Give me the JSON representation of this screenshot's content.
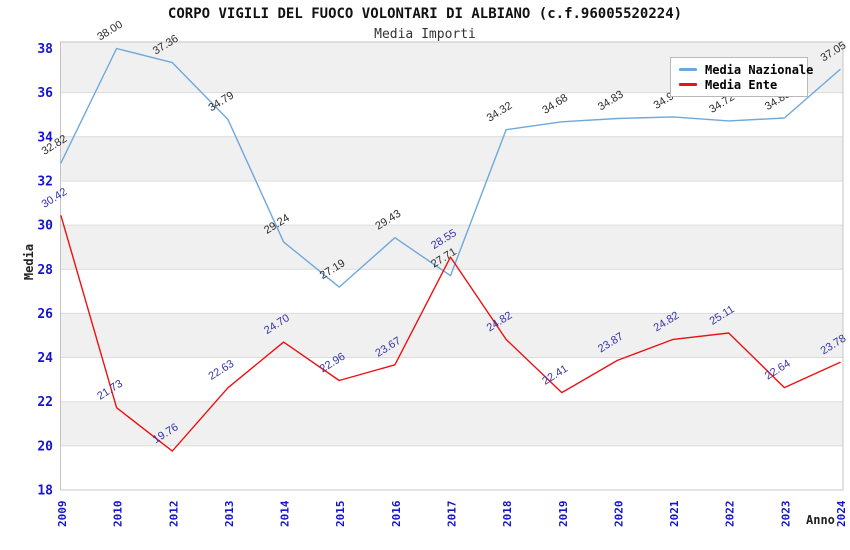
{
  "header": {
    "title": "CORPO VIGILI DEL FUOCO VOLONTARI DI ALBIANO (c.f.96005520224)",
    "subtitle": "Media Importi"
  },
  "axes": {
    "y_label": "Media",
    "x_label": "Anno",
    "y_ticks": [
      "38",
      "36",
      "34",
      "32",
      "30",
      "28",
      "26",
      "24",
      "22",
      "20",
      "18"
    ],
    "x_ticks": [
      "2009",
      "2010",
      "2012",
      "2013",
      "2014",
      "2015",
      "2016",
      "2017",
      "2018",
      "2019",
      "2020",
      "2021",
      "2022",
      "2023",
      "2024"
    ]
  },
  "legend": {
    "position": "top-right",
    "items": [
      {
        "label": "Media Nazionale",
        "color": "#6FA8DC"
      },
      {
        "label": "Media Ente",
        "color": "#EE1111"
      }
    ]
  },
  "colors": {
    "tick_labels": "#1414CC",
    "band_gray": "#F0F0F0",
    "gridline": "#DCDCDC",
    "plot_border": "#C4C4C4",
    "nazionale_line": "#6FA8DC",
    "ente_line": "#EE1111",
    "nazionale_point_labels": "#2B2B2B",
    "ente_point_labels": "#3333AA"
  },
  "chart_data": {
    "type": "line",
    "title": "CORPO VIGILI DEL FUOCO VOLONTARI DI ALBIANO (c.f.96005520224)",
    "subtitle": "Media Importi",
    "xlabel": "Anno",
    "ylabel": "Media",
    "x": [
      "2009",
      "2010",
      "2012",
      "2013",
      "2014",
      "2015",
      "2016",
      "2017",
      "2018",
      "2019",
      "2020",
      "2021",
      "2022",
      "2023",
      "2024"
    ],
    "ylim": [
      18,
      38.3
    ],
    "yticks": [
      18,
      20,
      22,
      24,
      26,
      28,
      30,
      32,
      34,
      36,
      38
    ],
    "grid": "horizontal-bands-alternating",
    "legend_position": "top-right",
    "series": [
      {
        "name": "Media Nazionale",
        "color": "#6FA8DC",
        "label_color": "#2B2B2B",
        "values": [
          32.82,
          38.0,
          37.36,
          34.79,
          29.24,
          27.19,
          29.43,
          27.71,
          34.32,
          34.68,
          34.83,
          34.9,
          34.72,
          34.85,
          37.05
        ],
        "labels": [
          "32.82",
          "38.00",
          "37.36",
          "34.79",
          "29.24",
          "27.19",
          "29.43",
          "27.71",
          "34.32",
          "34.68",
          "34.83",
          "34.90",
          "34.72",
          "34.85",
          "37.05"
        ],
        "note_labels_occluded_by_legend": [
          "2021",
          "2022",
          "2023"
        ]
      },
      {
        "name": "Media Ente",
        "color": "#EE1111",
        "label_color": "#3333AA",
        "values": [
          30.42,
          21.73,
          19.76,
          22.63,
          24.7,
          22.96,
          23.67,
          28.55,
          24.82,
          22.41,
          23.87,
          24.82,
          25.11,
          22.64,
          23.78
        ],
        "labels": [
          "30.42",
          "21.73",
          "19.76",
          "22.63",
          "24.70",
          "22.96",
          "23.67",
          "28.55",
          "24.82",
          "22.41",
          "23.87",
          "24.82",
          "25.11",
          "22.64",
          "23.78"
        ]
      }
    ]
  }
}
